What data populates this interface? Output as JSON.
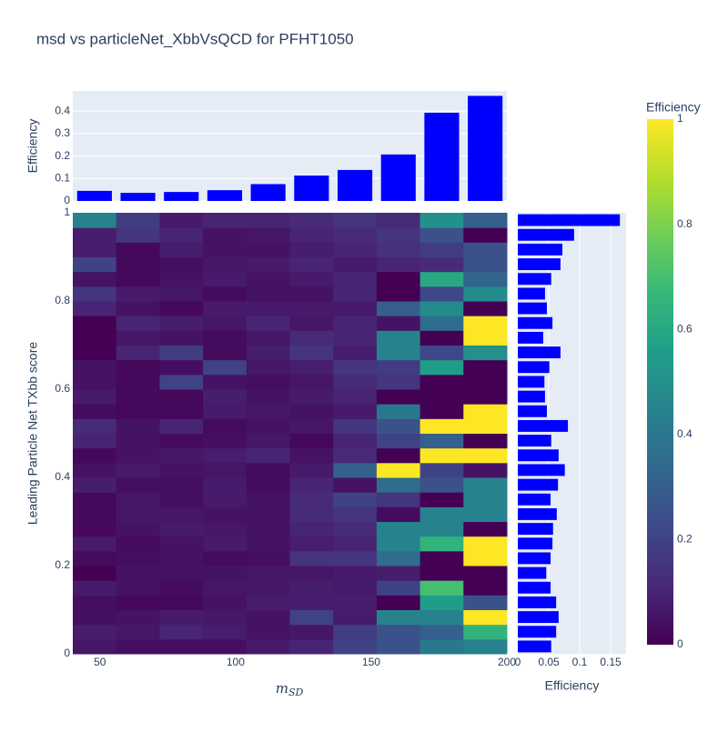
{
  "chart_data": [
    {
      "type": "heatmap",
      "title": "msd vs particleNet_XbbVsQCD for PFHT1050",
      "xlabel": "m",
      "xlabel_subscript": "SD",
      "ylabel": "Leading Particle Net TXbb score",
      "xlim": [
        40,
        200
      ],
      "ylim": [
        0,
        1
      ],
      "xticks": [
        50,
        100,
        150,
        200
      ],
      "yticks": [
        0,
        0.2,
        0.4,
        0.6,
        0.8,
        1
      ],
      "colorscale": "Viridis",
      "colorbar_title": "Efficiency",
      "zlim": [
        0,
        1
      ],
      "zticks": [
        0,
        0.2,
        0.4,
        0.6,
        0.8,
        1
      ],
      "z": [
        [
          0.06,
          0.04,
          0.04,
          0.04,
          0.07,
          0.1,
          0.2,
          0.25,
          0.4,
          0.45
        ],
        [
          0.08,
          0.06,
          0.1,
          0.08,
          0.05,
          0.06,
          0.18,
          0.25,
          0.3,
          0.65
        ],
        [
          0.04,
          0.05,
          0.07,
          0.06,
          0.05,
          0.2,
          0.07,
          0.45,
          0.45,
          1.0
        ],
        [
          0.04,
          0.02,
          0.02,
          0.05,
          0.08,
          0.08,
          0.08,
          0.0,
          0.55,
          0.25
        ],
        [
          0.07,
          0.05,
          0.03,
          0.06,
          0.06,
          0.08,
          0.07,
          0.2,
          0.7,
          0.0
        ],
        [
          0.0,
          0.05,
          0.05,
          0.05,
          0.06,
          0.06,
          0.07,
          0.08,
          0.0,
          0.0
        ],
        [
          0.03,
          0.04,
          0.05,
          0.03,
          0.04,
          0.15,
          0.15,
          0.35,
          0.0,
          1.0
        ],
        [
          0.07,
          0.03,
          0.05,
          0.07,
          0.05,
          0.08,
          0.1,
          0.45,
          0.65,
          1.0
        ],
        [
          0.02,
          0.05,
          0.07,
          0.06,
          0.05,
          0.1,
          0.12,
          0.45,
          0.45,
          0.0
        ],
        [
          0.02,
          0.06,
          0.06,
          0.05,
          0.05,
          0.12,
          0.15,
          0.03,
          0.45,
          0.45
        ],
        [
          0.02,
          0.06,
          0.04,
          0.07,
          0.05,
          0.12,
          0.2,
          0.15,
          0.0,
          0.45
        ],
        [
          0.08,
          0.04,
          0.04,
          0.07,
          0.03,
          0.1,
          0.05,
          0.35,
          0.25,
          0.45
        ],
        [
          0.05,
          0.07,
          0.05,
          0.06,
          0.03,
          0.07,
          0.3,
          1.0,
          0.2,
          0.05
        ],
        [
          0.02,
          0.05,
          0.06,
          0.08,
          0.1,
          0.05,
          0.12,
          0.0,
          1.0,
          1.0
        ],
        [
          0.1,
          0.05,
          0.03,
          0.04,
          0.06,
          0.02,
          0.1,
          0.2,
          0.3,
          0.0
        ],
        [
          0.12,
          0.05,
          0.1,
          0.03,
          0.05,
          0.06,
          0.15,
          0.25,
          1.0,
          1.0
        ],
        [
          0.03,
          0.02,
          0.02,
          0.07,
          0.06,
          0.05,
          0.07,
          0.4,
          0.0,
          1.0
        ],
        [
          0.07,
          0.02,
          0.02,
          0.08,
          0.05,
          0.07,
          0.1,
          0.0,
          0.0,
          0.0
        ],
        [
          0.05,
          0.02,
          0.2,
          0.05,
          0.04,
          0.06,
          0.12,
          0.15,
          0.0,
          0.0
        ],
        [
          0.05,
          0.02,
          0.04,
          0.2,
          0.06,
          0.08,
          0.15,
          0.18,
          0.55,
          0.0
        ],
        [
          0.0,
          0.1,
          0.18,
          0.03,
          0.08,
          0.15,
          0.08,
          0.45,
          0.22,
          0.5
        ],
        [
          0.0,
          0.06,
          0.05,
          0.03,
          0.06,
          0.12,
          0.1,
          0.45,
          0.0,
          1.0
        ],
        [
          0.0,
          0.1,
          0.08,
          0.06,
          0.1,
          0.06,
          0.1,
          0.05,
          0.35,
          1.0
        ],
        [
          0.1,
          0.05,
          0.02,
          0.07,
          0.07,
          0.07,
          0.07,
          0.3,
          0.48,
          0.0
        ],
        [
          0.15,
          0.07,
          0.06,
          0.03,
          0.05,
          0.05,
          0.1,
          0.0,
          0.22,
          0.48
        ],
        [
          0.05,
          0.02,
          0.05,
          0.07,
          0.05,
          0.07,
          0.1,
          0.0,
          0.6,
          0.32
        ],
        [
          0.2,
          0.02,
          0.04,
          0.06,
          0.07,
          0.1,
          0.07,
          0.1,
          0.12,
          0.25
        ],
        [
          0.08,
          0.02,
          0.08,
          0.05,
          0.05,
          0.08,
          0.1,
          0.14,
          0.18,
          0.25
        ],
        [
          0.08,
          0.15,
          0.1,
          0.05,
          0.06,
          0.1,
          0.12,
          0.15,
          0.25,
          0.0
        ],
        [
          0.45,
          0.18,
          0.07,
          0.1,
          0.1,
          0.12,
          0.15,
          0.12,
          0.5,
          0.3
        ]
      ]
    },
    {
      "type": "bar",
      "ylabel": "Efficiency",
      "color": "#0000ff",
      "xlim": [
        40,
        200
      ],
      "ylim": [
        0,
        0.49
      ],
      "yticks": [
        0,
        0.1,
        0.2,
        0.3,
        0.4
      ],
      "grid": true,
      "values": [
        0.045,
        0.036,
        0.04,
        0.048,
        0.075,
        0.113,
        0.138,
        0.207,
        0.393,
        0.468
      ]
    },
    {
      "type": "barh",
      "xlabel": "Efficiency",
      "color": "#0000ff",
      "xlim": [
        0,
        0.175
      ],
      "ylim": [
        0,
        1
      ],
      "xticks": [
        0,
        0.05,
        0.1,
        0.15
      ],
      "grid": true,
      "values": [
        0.054,
        0.062,
        0.066,
        0.062,
        0.053,
        0.046,
        0.053,
        0.056,
        0.057,
        0.063,
        0.053,
        0.065,
        0.076,
        0.066,
        0.054,
        0.081,
        0.047,
        0.044,
        0.043,
        0.051,
        0.069,
        0.041,
        0.056,
        0.047,
        0.044,
        0.054,
        0.069,
        0.072,
        0.091,
        0.165
      ]
    }
  ]
}
